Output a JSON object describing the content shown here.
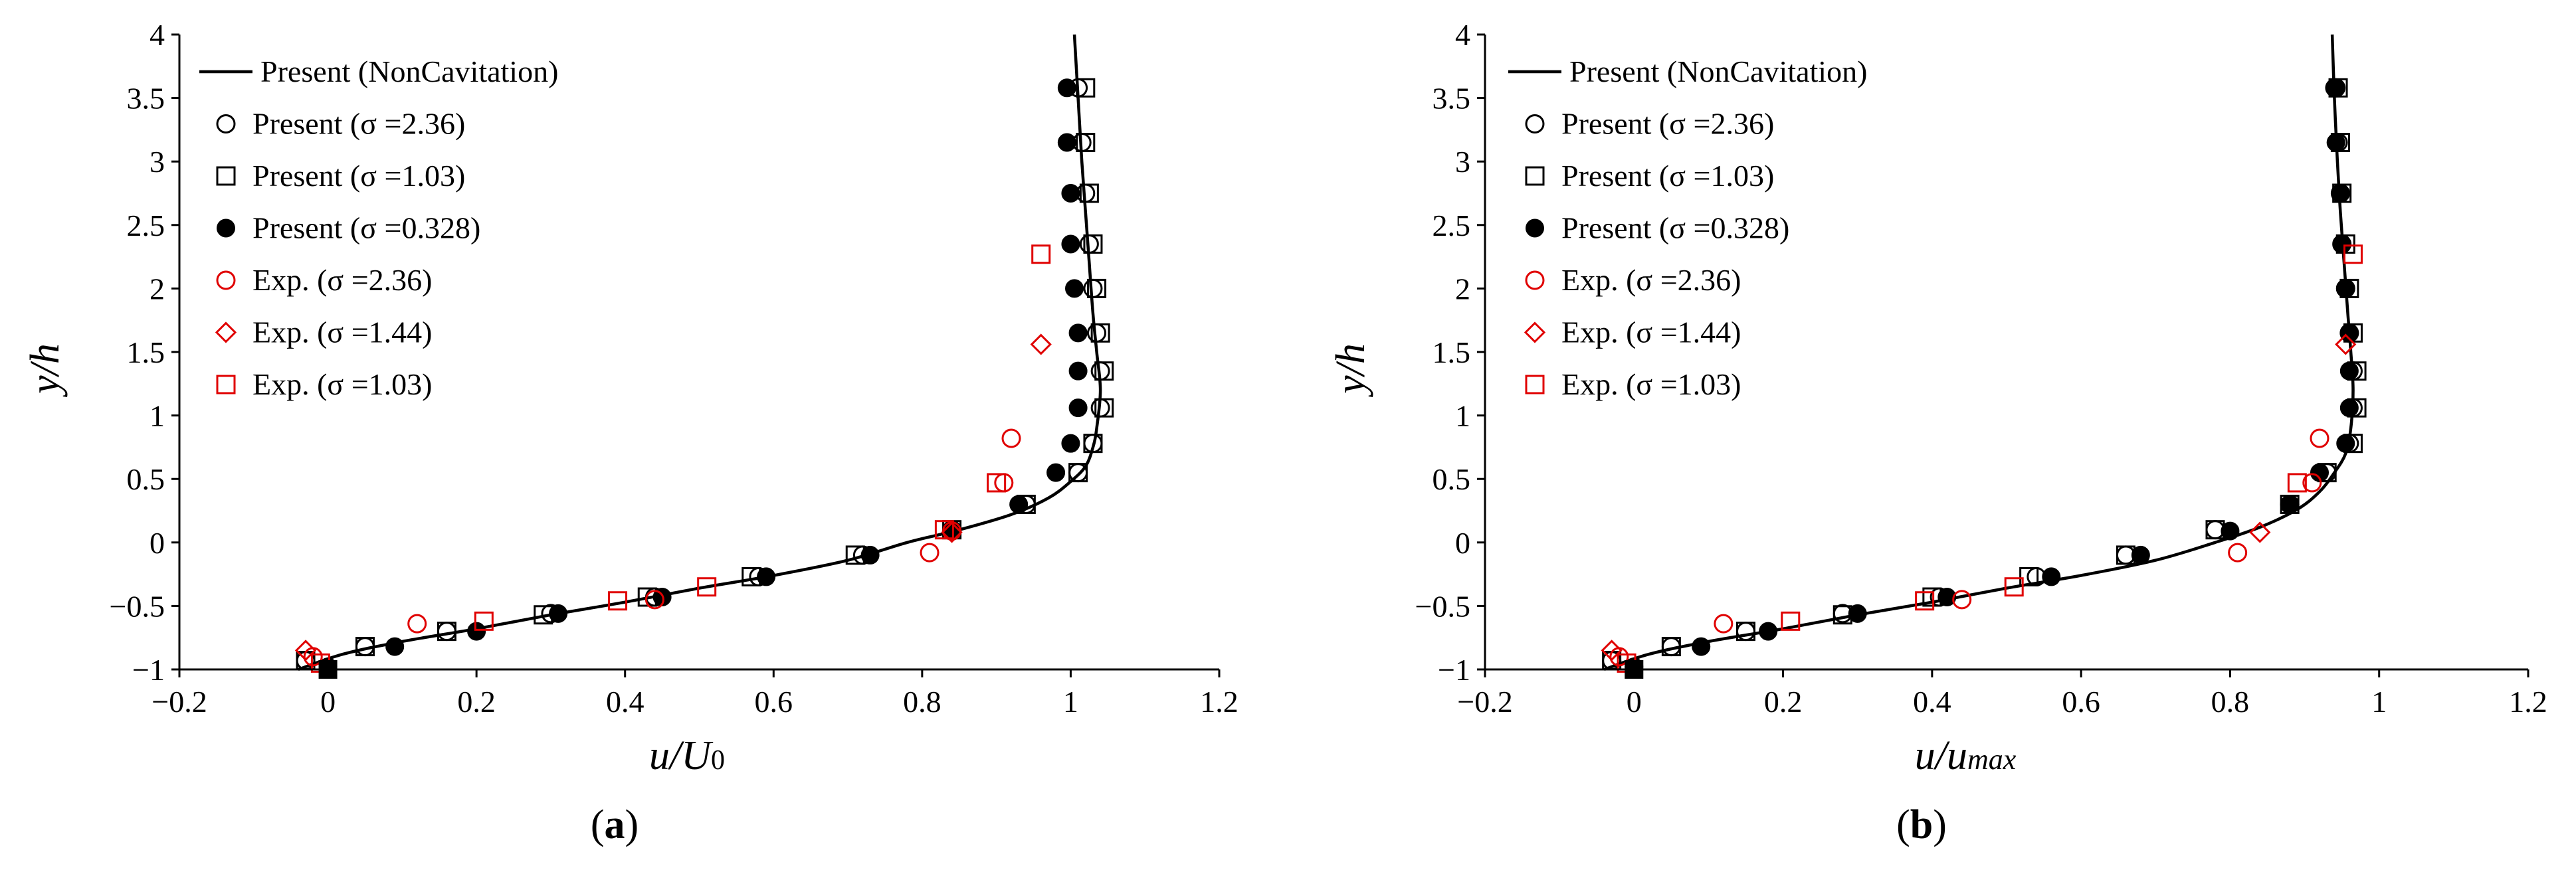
{
  "figure": {
    "panels": [
      {
        "label_open": "(",
        "label_letter": "a",
        "label_close": ")"
      },
      {
        "label_open": "(",
        "label_letter": "b",
        "label_close": ")"
      }
    ]
  },
  "chart_data": [
    {
      "type": "scatter",
      "panel": "a",
      "title": "",
      "xlabel_main": "u/U",
      "xlabel_sub": "0",
      "ylabel": "y/h",
      "xlim": [
        -0.2,
        1.2
      ],
      "ylim": [
        -1,
        4
      ],
      "xticks": [
        -0.2,
        0,
        0.2,
        0.4,
        0.6,
        0.8,
        1,
        1.2
      ],
      "xtick_labels": [
        "−0.2",
        "0",
        "0.2",
        "0.4",
        "0.6",
        "0.8",
        "1",
        "1.2"
      ],
      "yticks": [
        -1,
        -0.5,
        0,
        0.5,
        1,
        1.5,
        2,
        2.5,
        3,
        3.5,
        4
      ],
      "ytick_labels": [
        "−1",
        "−0.5",
        "0",
        "0.5",
        "1",
        "1.5",
        "2",
        "2.5",
        "3",
        "3.5",
        "4"
      ],
      "grid": false,
      "legend_position": "top-left",
      "series": [
        {
          "name": "Present (NonCavitation)",
          "marker": "line",
          "color": "#000000",
          "points": [
            [
              -0.04,
              -1
            ],
            [
              0.02,
              -0.88
            ],
            [
              0.1,
              -0.78
            ],
            [
              0.2,
              -0.68
            ],
            [
              0.3,
              -0.57
            ],
            [
              0.4,
              -0.47
            ],
            [
              0.5,
              -0.36
            ],
            [
              0.6,
              -0.26
            ],
            [
              0.7,
              -0.14
            ],
            [
              0.78,
              0.0
            ],
            [
              0.85,
              0.1
            ],
            [
              0.92,
              0.22
            ],
            [
              0.97,
              0.35
            ],
            [
              1.0,
              0.48
            ],
            [
              1.02,
              0.6
            ],
            [
              1.03,
              0.75
            ],
            [
              1.035,
              0.9
            ],
            [
              1.04,
              1.2
            ],
            [
              1.035,
              1.5
            ],
            [
              1.03,
              1.8
            ],
            [
              1.025,
              2.2
            ],
            [
              1.02,
              2.6
            ],
            [
              1.015,
              3.0
            ],
            [
              1.01,
              3.5
            ],
            [
              1.005,
              4.0
            ]
          ]
        },
        {
          "name": "Present (σ =2.36)",
          "marker": "open-circle",
          "color": "#000000",
          "points": [
            [
              -0.03,
              -0.93
            ],
            [
              0.05,
              -0.82
            ],
            [
              0.16,
              -0.7
            ],
            [
              0.3,
              -0.56
            ],
            [
              0.44,
              -0.43
            ],
            [
              0.58,
              -0.27
            ],
            [
              0.72,
              -0.1
            ],
            [
              0.84,
              0.1
            ],
            [
              0.94,
              0.3
            ],
            [
              1.01,
              0.55
            ],
            [
              1.03,
              0.78
            ],
            [
              1.04,
              1.06
            ],
            [
              1.04,
              1.35
            ],
            [
              1.035,
              1.65
            ],
            [
              1.03,
              2.0
            ],
            [
              1.025,
              2.35
            ],
            [
              1.02,
              2.75
            ],
            [
              1.015,
              3.15
            ],
            [
              1.01,
              3.58
            ]
          ]
        },
        {
          "name": "Present (σ =1.03)",
          "marker": "open-square",
          "color": "#000000",
          "points": [
            [
              -0.03,
              -0.93
            ],
            [
              0.05,
              -0.82
            ],
            [
              0.16,
              -0.7
            ],
            [
              0.29,
              -0.57
            ],
            [
              0.43,
              -0.43
            ],
            [
              0.57,
              -0.27
            ],
            [
              0.71,
              -0.1
            ],
            [
              0.84,
              0.1
            ],
            [
              0.94,
              0.3
            ],
            [
              1.01,
              0.55
            ],
            [
              1.03,
              0.78
            ],
            [
              1.045,
              1.06
            ],
            [
              1.045,
              1.35
            ],
            [
              1.04,
              1.65
            ],
            [
              1.035,
              2.0
            ],
            [
              1.03,
              2.35
            ],
            [
              1.025,
              2.75
            ],
            [
              1.02,
              3.15
            ],
            [
              1.02,
              3.58
            ]
          ]
        },
        {
          "name": "Present (σ =0.328)",
          "marker": "filled-circle",
          "color": "#000000",
          "points": [
            [
              0.0,
              -0.98
            ],
            [
              0.09,
              -0.82
            ],
            [
              0.2,
              -0.7
            ],
            [
              0.31,
              -0.56
            ],
            [
              0.45,
              -0.43
            ],
            [
              0.59,
              -0.27
            ],
            [
              0.73,
              -0.1
            ],
            [
              0.84,
              0.09
            ],
            [
              0.93,
              0.3
            ],
            [
              0.98,
              0.55
            ],
            [
              1.0,
              0.78
            ],
            [
              1.01,
              1.06
            ],
            [
              1.01,
              1.35
            ],
            [
              1.01,
              1.65
            ],
            [
              1.005,
              2.0
            ],
            [
              1.0,
              2.35
            ],
            [
              1.0,
              2.75
            ],
            [
              0.995,
              3.15
            ],
            [
              0.995,
              3.58
            ]
          ]
        },
        {
          "name": "Exp. (σ =2.36)",
          "marker": "open-circle",
          "color": "#e00000",
          "points": [
            [
              -0.02,
              -0.9
            ],
            [
              0.12,
              -0.64
            ],
            [
              0.44,
              -0.45
            ],
            [
              0.81,
              -0.08
            ],
            [
              0.84,
              0.09
            ],
            [
              0.91,
              0.47
            ],
            [
              0.92,
              0.82
            ]
          ]
        },
        {
          "name": "Exp. (σ =1.44)",
          "marker": "open-diamond",
          "color": "#e00000",
          "points": [
            [
              -0.03,
              -0.85
            ],
            [
              0.84,
              0.08
            ],
            [
              0.96,
              1.56
            ]
          ]
        },
        {
          "name": "Exp. (σ =1.03)",
          "marker": "open-square",
          "color": "#e00000",
          "points": [
            [
              -0.01,
              -0.95
            ],
            [
              0.21,
              -0.62
            ],
            [
              0.39,
              -0.46
            ],
            [
              0.51,
              -0.35
            ],
            [
              0.83,
              0.1
            ],
            [
              0.9,
              0.47
            ],
            [
              0.96,
              2.27
            ]
          ]
        },
        {
          "name": "",
          "marker": "filled-square",
          "color": "#000000",
          "in_legend": false,
          "points": [
            [
              0.0,
              -1.0
            ]
          ]
        }
      ]
    },
    {
      "type": "scatter",
      "panel": "b",
      "title": "",
      "xlabel_main": "u/u",
      "xlabel_sub": "max",
      "ylabel": "y/h",
      "xlim": [
        -0.2,
        1.2
      ],
      "ylim": [
        -1,
        4
      ],
      "xticks": [
        -0.2,
        0,
        0.2,
        0.4,
        0.6,
        0.8,
        1,
        1.2
      ],
      "xtick_labels": [
        "−0.2",
        "0",
        "0.2",
        "0.4",
        "0.6",
        "0.8",
        "1",
        "1.2"
      ],
      "yticks": [
        -1,
        -0.5,
        0,
        0.5,
        1,
        1.5,
        2,
        2.5,
        3,
        3.5,
        4
      ],
      "ytick_labels": [
        "−1",
        "−0.5",
        "0",
        "0.5",
        "1",
        "1.5",
        "2",
        "2.5",
        "3",
        "3.5",
        "4"
      ],
      "grid": false,
      "legend_position": "top-left",
      "series": [
        {
          "name": "Present (NonCavitation)",
          "marker": "line",
          "color": "#000000",
          "points": [
            [
              -0.04,
              -1
            ],
            [
              0.02,
              -0.88
            ],
            [
              0.1,
              -0.78
            ],
            [
              0.2,
              -0.68
            ],
            [
              0.3,
              -0.57
            ],
            [
              0.4,
              -0.47
            ],
            [
              0.5,
              -0.36
            ],
            [
              0.6,
              -0.26
            ],
            [
              0.7,
              -0.14
            ],
            [
              0.78,
              0.0
            ],
            [
              0.84,
              0.12
            ],
            [
              0.89,
              0.26
            ],
            [
              0.92,
              0.4
            ],
            [
              0.94,
              0.55
            ],
            [
              0.955,
              0.7
            ],
            [
              0.962,
              0.9
            ],
            [
              0.965,
              1.2
            ],
            [
              0.962,
              1.5
            ],
            [
              0.958,
              1.8
            ],
            [
              0.953,
              2.2
            ],
            [
              0.948,
              2.6
            ],
            [
              0.944,
              3.0
            ],
            [
              0.94,
              3.5
            ],
            [
              0.937,
              4.0
            ]
          ]
        },
        {
          "name": "Present (σ =2.36)",
          "marker": "open-circle",
          "color": "#000000",
          "points": [
            [
              -0.03,
              -0.93
            ],
            [
              0.05,
              -0.82
            ],
            [
              0.15,
              -0.7
            ],
            [
              0.28,
              -0.56
            ],
            [
              0.41,
              -0.43
            ],
            [
              0.54,
              -0.27
            ],
            [
              0.66,
              -0.1
            ],
            [
              0.78,
              0.1
            ],
            [
              0.88,
              0.3
            ],
            [
              0.93,
              0.55
            ],
            [
              0.96,
              0.78
            ],
            [
              0.965,
              1.06
            ],
            [
              0.965,
              1.35
            ],
            [
              0.96,
              1.65
            ],
            [
              0.955,
              2.0
            ],
            [
              0.95,
              2.35
            ],
            [
              0.948,
              2.75
            ],
            [
              0.945,
              3.15
            ],
            [
              0.942,
              3.58
            ]
          ]
        },
        {
          "name": "Present (σ =1.03)",
          "marker": "open-square",
          "color": "#000000",
          "points": [
            [
              -0.03,
              -0.93
            ],
            [
              0.05,
              -0.82
            ],
            [
              0.15,
              -0.7
            ],
            [
              0.28,
              -0.57
            ],
            [
              0.4,
              -0.43
            ],
            [
              0.53,
              -0.27
            ],
            [
              0.66,
              -0.1
            ],
            [
              0.78,
              0.1
            ],
            [
              0.88,
              0.3
            ],
            [
              0.93,
              0.55
            ],
            [
              0.965,
              0.78
            ],
            [
              0.97,
              1.06
            ],
            [
              0.97,
              1.35
            ],
            [
              0.965,
              1.65
            ],
            [
              0.96,
              2.0
            ],
            [
              0.955,
              2.35
            ],
            [
              0.95,
              2.75
            ],
            [
              0.948,
              3.15
            ],
            [
              0.945,
              3.58
            ]
          ]
        },
        {
          "name": "Present (σ =0.328)",
          "marker": "filled-circle",
          "color": "#000000",
          "points": [
            [
              0.0,
              -0.98
            ],
            [
              0.09,
              -0.82
            ],
            [
              0.18,
              -0.7
            ],
            [
              0.3,
              -0.56
            ],
            [
              0.42,
              -0.43
            ],
            [
              0.56,
              -0.27
            ],
            [
              0.68,
              -0.1
            ],
            [
              0.8,
              0.09
            ],
            [
              0.88,
              0.3
            ],
            [
              0.92,
              0.55
            ],
            [
              0.955,
              0.78
            ],
            [
              0.96,
              1.06
            ],
            [
              0.96,
              1.35
            ],
            [
              0.96,
              1.65
            ],
            [
              0.955,
              2.0
            ],
            [
              0.95,
              2.35
            ],
            [
              0.948,
              2.75
            ],
            [
              0.942,
              3.15
            ],
            [
              0.94,
              3.58
            ]
          ]
        },
        {
          "name": "Exp. (σ =2.36)",
          "marker": "open-circle",
          "color": "#e00000",
          "points": [
            [
              -0.02,
              -0.9
            ],
            [
              0.12,
              -0.64
            ],
            [
              0.44,
              -0.45
            ],
            [
              0.81,
              -0.08
            ],
            [
              0.91,
              0.47
            ],
            [
              0.92,
              0.82
            ]
          ]
        },
        {
          "name": "Exp. (σ =1.44)",
          "marker": "open-diamond",
          "color": "#e00000",
          "points": [
            [
              -0.03,
              -0.85
            ],
            [
              0.84,
              0.08
            ],
            [
              0.955,
              1.56
            ]
          ]
        },
        {
          "name": "Exp. (σ =1.03)",
          "marker": "open-square",
          "color": "#e00000",
          "points": [
            [
              -0.01,
              -0.95
            ],
            [
              0.21,
              -0.62
            ],
            [
              0.39,
              -0.46
            ],
            [
              0.51,
              -0.35
            ],
            [
              0.89,
              0.47
            ],
            [
              0.965,
              2.27
            ]
          ]
        },
        {
          "name": "",
          "marker": "filled-square",
          "color": "#000000",
          "in_legend": false,
          "points": [
            [
              0.0,
              -1.0
            ]
          ]
        }
      ]
    }
  ]
}
